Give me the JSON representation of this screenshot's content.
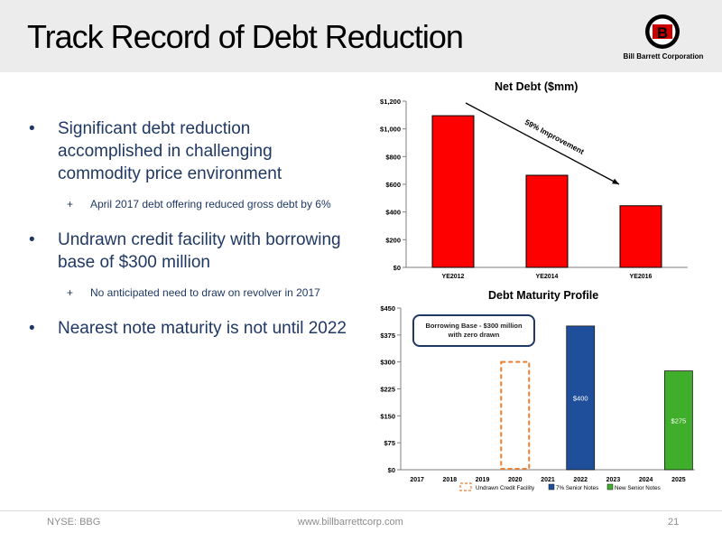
{
  "slide": {
    "title": "Track Record of Debt Reduction",
    "logo_text": "Bill Barrett Corporation",
    "logo_letter": "B"
  },
  "bullets": [
    {
      "text": "Significant debt reduction accomplished in challenging commodity price environment",
      "sub": [
        "April 2017 debt offering reduced gross debt by 6%"
      ]
    },
    {
      "text": "Undrawn credit facility with borrowing base of $300 million",
      "sub": [
        "No anticipated need to draw on revolver in 2017"
      ]
    },
    {
      "text": "Nearest note maturity is not until 2022",
      "sub": []
    }
  ],
  "colors": {
    "title_text": "#000000",
    "bullet_text": "#1f3864",
    "red_bar": "#ff0000",
    "blue_bar": "#1f4e9a",
    "green_bar": "#3fae2a",
    "orange_dashed": "#ed7d31",
    "callout_border": "#1f3864"
  },
  "chart_data": [
    {
      "type": "bar",
      "title": "Net Debt ($mm)",
      "categories": [
        "YE2012",
        "YE2014",
        "YE2016"
      ],
      "values": [
        1095,
        665,
        445
      ],
      "ylim": [
        0,
        1200
      ],
      "yticks": [
        0,
        200,
        400,
        600,
        800,
        1000,
        1200
      ],
      "ytick_labels": [
        "$0",
        "$200",
        "$400",
        "$600",
        "$800",
        "$1,000",
        "$1,200"
      ],
      "grid": false,
      "annotation": "59% Improvement"
    },
    {
      "type": "bar",
      "title": "Debt Maturity Profile",
      "categories": [
        "2017",
        "2018",
        "2019",
        "2020",
        "2021",
        "2022",
        "2023",
        "2024",
        "2025"
      ],
      "ylim": [
        0,
        450
      ],
      "yticks": [
        0,
        75,
        150,
        225,
        300,
        375,
        450
      ],
      "ytick_labels": [
        "$0",
        "$75",
        "$150",
        "$225",
        "$300",
        "$375",
        "$450"
      ],
      "series": [
        {
          "name": "Undrawn Credit Facility",
          "category": "2020",
          "value": 300,
          "style": "dashed-outline"
        },
        {
          "name": "7% Senior Notes",
          "category": "2022",
          "value": 400,
          "label": "$400"
        },
        {
          "name": "New Senior Notes",
          "category": "2025",
          "value": 275,
          "label": "$275"
        }
      ],
      "legend": [
        "Undrawn Credit Facility",
        "7% Senior Notes",
        "New Senior Notes"
      ],
      "legend_position": "bottom",
      "callout": "Borrowing Base - $300 million with zero drawn",
      "grid": false
    }
  ],
  "footer": {
    "left": "NYSE: BBG",
    "center": "www.billbarrettcorp.com",
    "page": "21"
  }
}
